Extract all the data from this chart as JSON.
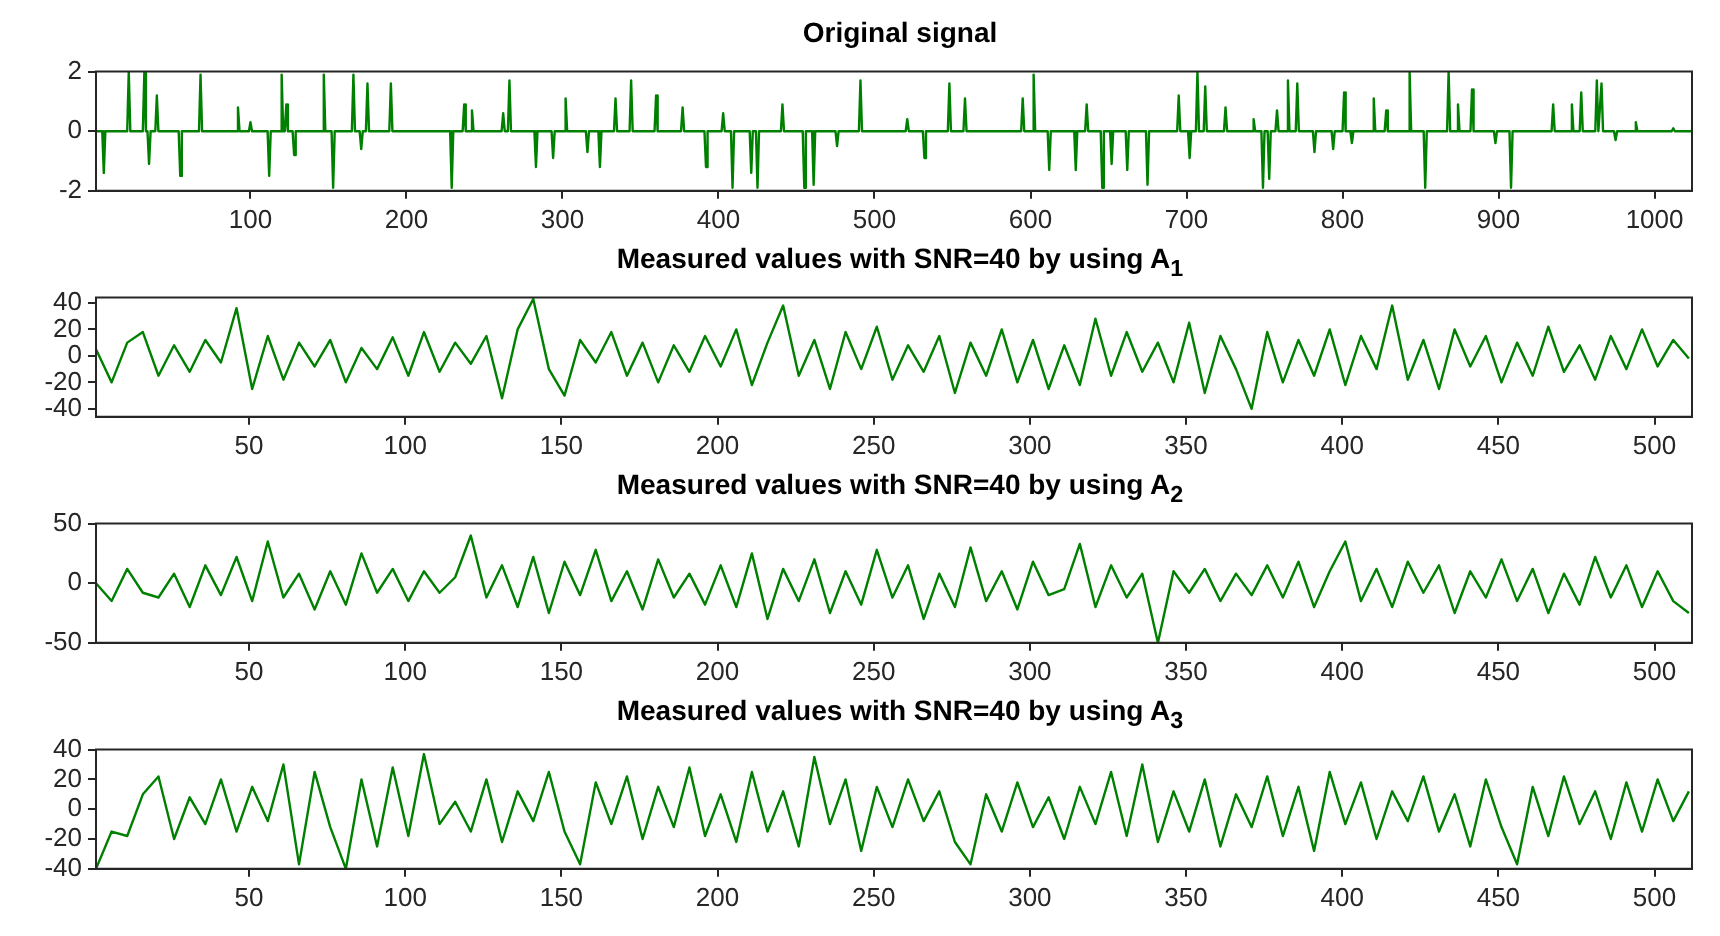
{
  "chart_data": [
    {
      "type": "line",
      "title": "Original signal",
      "color": "#008000",
      "xlim": [
        1,
        1024
      ],
      "xticks": [
        100,
        200,
        300,
        400,
        500,
        600,
        700,
        800,
        900,
        1000
      ],
      "ylim": [
        -2,
        2
      ],
      "yticks": [
        -2,
        0,
        2
      ],
      "x": [
        1,
        5,
        6,
        7,
        21,
        22,
        23,
        31,
        32,
        33,
        34,
        35,
        36,
        39,
        40,
        41,
        54,
        55,
        56,
        67,
        68,
        69,
        91,
        92,
        93,
        99,
        100,
        101,
        111,
        112,
        113,
        119,
        120,
        121,
        122,
        123,
        124,
        127,
        128,
        129,
        146,
        147,
        148,
        152,
        153,
        154,
        165,
        166,
        167,
        170,
        171,
        172,
        174,
        175,
        176,
        189,
        190,
        191,
        228,
        229,
        230,
        236,
        237,
        238,
        241,
        242,
        243,
        261,
        262,
        263,
        265,
        266,
        267,
        282,
        283,
        284,
        293,
        294,
        295,
        301,
        302,
        303,
        315,
        316,
        317,
        323,
        324,
        325,
        333,
        334,
        335,
        343,
        344,
        345,
        359,
        360,
        361,
        376,
        377,
        378,
        391,
        392,
        393,
        402,
        403,
        404,
        408,
        409,
        410,
        420,
        421,
        422,
        424,
        425,
        426,
        440,
        441,
        442,
        454,
        455,
        456,
        460,
        461,
        462,
        475,
        476,
        477,
        490,
        491,
        492,
        520,
        521,
        522,
        531,
        532,
        533,
        547,
        548,
        549,
        557,
        558,
        559,
        594,
        595,
        596,
        601,
        602,
        603,
        611,
        612,
        613,
        628,
        629,
        630,
        635,
        636,
        637,
        645,
        646,
        647,
        651,
        652,
        653,
        661,
        662,
        663,
        674,
        675,
        676,
        694,
        695,
        696,
        701,
        702,
        703,
        706,
        707,
        708,
        711,
        712,
        713,
        724,
        725,
        726,
        742,
        743,
        744,
        748,
        749,
        750,
        752,
        753,
        754,
        757,
        758,
        759,
        764,
        765,
        766,
        770,
        771,
        772,
        781,
        782,
        783,
        793,
        794,
        795,
        800,
        801,
        802,
        805,
        806,
        807,
        819,
        820,
        821,
        827,
        828,
        829,
        842,
        843,
        844,
        852,
        853,
        854,
        867,
        868,
        869,
        873,
        874,
        875,
        882,
        883,
        884,
        897,
        898,
        899,
        907,
        908,
        909,
        934,
        935,
        936,
        946,
        947,
        948,
        952,
        953,
        954,
        962,
        963,
        964,
        965,
        966,
        967,
        974,
        975,
        976,
        987,
        988,
        989,
        1011,
        1012,
        1013,
        1024
      ],
      "values": [
        0,
        0,
        -1.4,
        0,
        0,
        2,
        0,
        0,
        2,
        0,
        0,
        -1.1,
        0,
        0,
        1.2,
        0,
        0,
        -1.5,
        0,
        0,
        1.9,
        0,
        0,
        0.8,
        0,
        0,
        0.3,
        0,
        0,
        -1.5,
        0,
        0,
        1.9,
        0,
        0,
        0.9,
        0,
        0,
        -0.8,
        0,
        0,
        1.9,
        0,
        0,
        -1.9,
        0,
        0,
        1.9,
        0,
        0,
        -0.6,
        0,
        0,
        1.6,
        0,
        0,
        1.6,
        0,
        0,
        -1.9,
        0,
        0,
        0.9,
        0,
        0,
        0.7,
        0,
        0,
        0.6,
        0,
        0,
        1.7,
        0,
        0,
        -1.2,
        0,
        0,
        -0.9,
        0,
        0,
        1.1,
        0,
        0,
        -0.7,
        0,
        0,
        -1.2,
        0,
        0,
        1.1,
        0,
        0,
        1.7,
        0,
        0,
        1.2,
        0,
        0,
        0.8,
        0,
        0,
        -1.2,
        0,
        0,
        0.6,
        0,
        0,
        -1.9,
        0,
        0,
        -1.4,
        0,
        0,
        -1.9,
        0,
        0,
        0.9,
        0,
        0,
        -1.9,
        0,
        0,
        -1.8,
        0,
        0,
        -0.5,
        0,
        0,
        1.7,
        0,
        0,
        0.4,
        0,
        0,
        -0.9,
        0,
        0,
        1.6,
        0,
        0,
        1.1,
        0,
        0,
        1.1,
        0,
        0,
        1.9,
        0,
        0,
        -1.3,
        0,
        0,
        -1.3,
        0,
        0,
        0.9,
        0,
        0,
        -1.9,
        0,
        0,
        -1.1,
        0,
        0,
        -1.3,
        0,
        0,
        -1.8,
        0,
        0,
        1.2,
        0,
        0,
        -0.9,
        0,
        0,
        2,
        0,
        0,
        1.5,
        0,
        0,
        0.8,
        0,
        0,
        0.4,
        0,
        0,
        -1.9,
        0,
        0,
        -1.6,
        0,
        0,
        0.7,
        0,
        0,
        1.7,
        0,
        0,
        1.6,
        0,
        0,
        -0.7,
        0,
        0,
        -0.6,
        0,
        0,
        1.3,
        0,
        0,
        -0.4,
        0,
        0,
        1.1,
        0,
        0,
        0.7,
        0,
        0,
        2,
        0,
        0,
        -1.9,
        0,
        0,
        2,
        0,
        0,
        0.9,
        0,
        0,
        1.4,
        0,
        0,
        -0.4,
        0,
        0,
        -1.9,
        0,
        0,
        0.9,
        0,
        0,
        0.9,
        0,
        0,
        1.3,
        0,
        0,
        1.7,
        0,
        0,
        1.6,
        0,
        0,
        -0.3,
        0,
        0,
        0.3,
        0,
        0,
        0.1,
        0,
        0
      ]
    },
    {
      "type": "line",
      "title": "Measured values with SNR=40 by using A$_{1}$",
      "color": "#008000",
      "xlim": [
        1,
        512
      ],
      "xticks": [
        50,
        100,
        150,
        200,
        250,
        300,
        350,
        400,
        450,
        500
      ],
      "ylim": [
        -46,
        44
      ],
      "yticks": [
        -40,
        -20,
        0,
        20,
        40
      ],
      "x": [
        1,
        6,
        11,
        16,
        21,
        26,
        31,
        36,
        41,
        46,
        51,
        56,
        61,
        66,
        71,
        76,
        81,
        86,
        91,
        96,
        101,
        106,
        111,
        116,
        121,
        126,
        131,
        136,
        141,
        146,
        151,
        156,
        161,
        166,
        171,
        176,
        181,
        186,
        191,
        196,
        201,
        206,
        211,
        216,
        221,
        226,
        231,
        236,
        241,
        246,
        251,
        256,
        261,
        266,
        271,
        276,
        281,
        286,
        291,
        296,
        301,
        306,
        311,
        316,
        321,
        326,
        331,
        336,
        341,
        346,
        351,
        356,
        361,
        366,
        371,
        376,
        381,
        386,
        391,
        396,
        401,
        406,
        411,
        416,
        421,
        426,
        431,
        436,
        441,
        446,
        451,
        456,
        461,
        466,
        471,
        476,
        481,
        486,
        491,
        496,
        501,
        506,
        511
      ],
      "values": [
        5,
        -20,
        10,
        18,
        -15,
        8,
        -12,
        12,
        -5,
        36,
        -25,
        15,
        -18,
        10,
        -8,
        12,
        -20,
        6,
        -10,
        14,
        -15,
        18,
        -12,
        10,
        -6,
        15,
        -32,
        20,
        43,
        -10,
        -30,
        12,
        -5,
        18,
        -15,
        10,
        -20,
        8,
        -12,
        15,
        -8,
        20,
        -22,
        10,
        38,
        -15,
        12,
        -25,
        18,
        -10,
        22,
        -18,
        8,
        -12,
        15,
        -28,
        10,
        -15,
        20,
        -20,
        12,
        -25,
        8,
        -22,
        28,
        -15,
        18,
        -12,
        10,
        -20,
        25,
        -28,
        15,
        -10,
        -40,
        18,
        -20,
        12,
        -15,
        20,
        -22,
        15,
        -10,
        38,
        -18,
        12,
        -25,
        20,
        -8,
        15,
        -20,
        10,
        -15,
        22,
        -12,
        8,
        -18,
        15,
        -10,
        20,
        -8,
        12,
        -2
      ]
    },
    {
      "type": "line",
      "title": "Measured values with SNR=40 by using A$_{2}$",
      "color": "#008000",
      "xlim": [
        1,
        512
      ],
      "xticks": [
        50,
        100,
        150,
        200,
        250,
        300,
        350,
        400,
        450,
        500
      ],
      "ylim": [
        -50,
        50
      ],
      "yticks": [
        -50,
        0,
        50
      ],
      "x": [
        1,
        6,
        11,
        16,
        21,
        26,
        31,
        36,
        41,
        46,
        51,
        56,
        61,
        66,
        71,
        76,
        81,
        86,
        91,
        96,
        101,
        106,
        111,
        116,
        121,
        126,
        131,
        136,
        141,
        146,
        151,
        156,
        161,
        166,
        171,
        176,
        181,
        186,
        191,
        196,
        201,
        206,
        211,
        216,
        221,
        226,
        231,
        236,
        241,
        246,
        251,
        256,
        261,
        266,
        271,
        276,
        281,
        286,
        291,
        296,
        301,
        306,
        311,
        316,
        321,
        326,
        331,
        336,
        341,
        346,
        351,
        356,
        361,
        366,
        371,
        376,
        381,
        386,
        391,
        396,
        401,
        406,
        411,
        416,
        421,
        426,
        431,
        436,
        441,
        446,
        451,
        456,
        461,
        466,
        471,
        476,
        481,
        486,
        491,
        496,
        501,
        506,
        511
      ],
      "values": [
        0,
        -15,
        12,
        -8,
        -12,
        8,
        -20,
        15,
        -10,
        22,
        -15,
        35,
        -12,
        8,
        -22,
        10,
        -18,
        25,
        -8,
        12,
        -15,
        10,
        -8,
        5,
        40,
        -12,
        15,
        -20,
        22,
        -25,
        18,
        -10,
        28,
        -15,
        10,
        -22,
        20,
        -12,
        8,
        -18,
        15,
        -20,
        25,
        -30,
        12,
        -15,
        20,
        -25,
        10,
        -18,
        28,
        -12,
        15,
        -30,
        8,
        -20,
        30,
        -15,
        10,
        -22,
        18,
        -10,
        -5,
        33,
        -20,
        15,
        -12,
        8,
        -50,
        10,
        -8,
        12,
        -15,
        8,
        -10,
        15,
        -12,
        18,
        -20,
        10,
        35,
        -15,
        12,
        -20,
        18,
        -8,
        15,
        -25,
        10,
        -12,
        20,
        -15,
        12,
        -25,
        8,
        -18,
        22,
        -12,
        15,
        -20,
        10,
        -15,
        -25
      ]
    },
    {
      "type": "line",
      "title": "Measured values with SNR=40 by using A$_{3}$",
      "color": "#008000",
      "xlim": [
        1,
        512
      ],
      "xticks": [
        50,
        100,
        150,
        200,
        250,
        300,
        350,
        400,
        450,
        500
      ],
      "ylim": [
        -40,
        40
      ],
      "yticks": [
        -40,
        -20,
        0,
        20,
        40
      ],
      "x": [
        1,
        6,
        11,
        16,
        21,
        26,
        31,
        36,
        41,
        46,
        51,
        56,
        61,
        66,
        71,
        76,
        81,
        86,
        91,
        96,
        101,
        106,
        111,
        116,
        121,
        126,
        131,
        136,
        141,
        146,
        151,
        156,
        161,
        166,
        171,
        176,
        181,
        186,
        191,
        196,
        201,
        206,
        211,
        216,
        221,
        226,
        231,
        236,
        241,
        246,
        251,
        256,
        261,
        266,
        271,
        276,
        281,
        286,
        291,
        296,
        301,
        306,
        311,
        316,
        321,
        326,
        331,
        336,
        341,
        346,
        351,
        356,
        361,
        366,
        371,
        376,
        381,
        386,
        391,
        396,
        401,
        406,
        411,
        416,
        421,
        426,
        431,
        436,
        441,
        446,
        451,
        456,
        461,
        466,
        471,
        476,
        481,
        486,
        491,
        496,
        501,
        506,
        511
      ],
      "values": [
        -40,
        -15,
        -18,
        10,
        22,
        -20,
        8,
        -10,
        20,
        -15,
        15,
        -8,
        30,
        -37,
        25,
        -12,
        -40,
        20,
        -25,
        28,
        -18,
        37,
        -10,
        5,
        -15,
        20,
        -22,
        12,
        -8,
        25,
        -15,
        -37,
        18,
        -10,
        22,
        -20,
        15,
        -12,
        28,
        -18,
        10,
        -22,
        25,
        -15,
        12,
        -25,
        35,
        -10,
        20,
        -28,
        15,
        -12,
        20,
        -8,
        12,
        -22,
        -37,
        10,
        -15,
        18,
        -12,
        8,
        -20,
        15,
        -10,
        25,
        -18,
        30,
        -22,
        12,
        -15,
        20,
        -25,
        10,
        -12,
        22,
        -18,
        15,
        -28,
        25,
        -10,
        18,
        -20,
        12,
        -8,
        22,
        -15,
        10,
        -25,
        20,
        -12,
        -37,
        15,
        -18,
        22,
        -10,
        12,
        -20,
        18,
        -15,
        20,
        -8,
        12
      ]
    }
  ]
}
